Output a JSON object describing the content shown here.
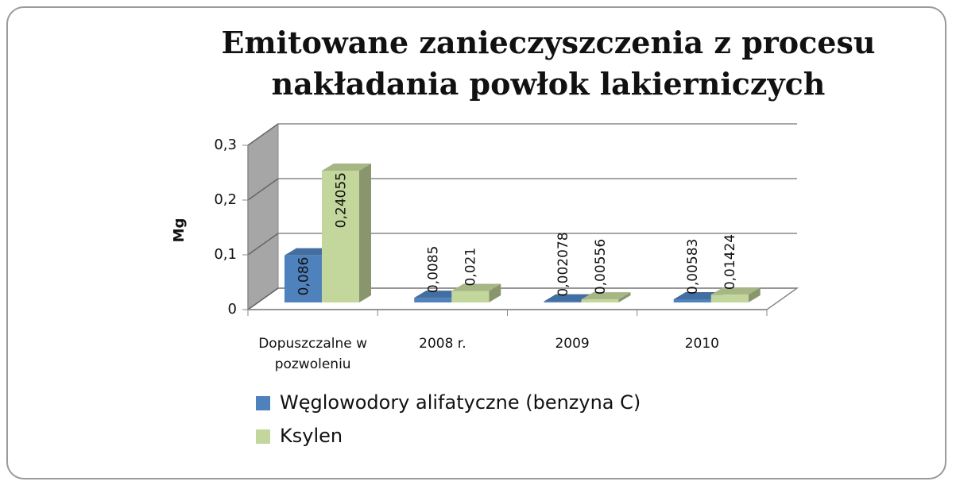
{
  "chart_data": {
    "type": "bar3d",
    "title": "Emitowane zanieczyszczenia z procesu nakładania powłok lakierniczych",
    "y_label": "Mg",
    "categories": [
      "Dopuszczalne w pozwoleniu",
      "2008 r.",
      "2009",
      "2010"
    ],
    "series": [
      {
        "name": "Węglowodory alifatyczne (benzyna C)",
        "color": "#4f81bd",
        "values": [
          0.086,
          0.0085,
          0.002078,
          0.00583
        ],
        "value_labels": [
          "0,086",
          "0,0085",
          "0,002078",
          "0,00583"
        ]
      },
      {
        "name": "Ksylen",
        "color": "#c3d69b",
        "values": [
          0.24055,
          0.021,
          0.00556,
          0.01424
        ],
        "value_labels": [
          "0,24055",
          "0,021",
          "0,00556",
          "0,01424"
        ]
      }
    ],
    "ylim": [
      0,
      0.3
    ],
    "yticks": [
      0,
      {
        "value": 0.1,
        "label": "0,1"
      },
      {
        "value": 0.2,
        "label": "0,2"
      },
      {
        "value": 0.3,
        "label": "0,3"
      }
    ],
    "grid": true,
    "legend": "bottom"
  }
}
